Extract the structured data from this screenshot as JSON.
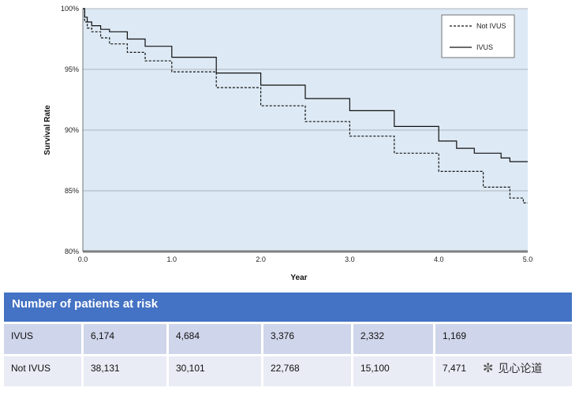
{
  "chart_data": {
    "type": "line",
    "xlabel": "Year",
    "ylabel": "Survival Rate",
    "xlim": [
      0,
      5
    ],
    "ylim": [
      80,
      100
    ],
    "x_ticks": [
      "0.0",
      "1.0",
      "2.0",
      "3.0",
      "4.0",
      "5.0"
    ],
    "y_ticks": [
      "80%",
      "85%",
      "90%",
      "95%",
      "100%"
    ],
    "grid": true,
    "legend_position": "top-right",
    "series": [
      {
        "name": "Not IVUS",
        "style": "dashed",
        "x": [
          0.0,
          0.02,
          0.05,
          0.1,
          0.2,
          0.3,
          0.5,
          0.7,
          1.0,
          1.5,
          2.0,
          2.5,
          3.0,
          3.5,
          4.0,
          4.5,
          4.8,
          4.95,
          5.0
        ],
        "y": [
          100.0,
          98.9,
          98.4,
          98.1,
          97.6,
          97.1,
          96.4,
          95.7,
          94.8,
          93.5,
          92.0,
          90.7,
          89.5,
          88.1,
          86.6,
          85.3,
          84.4,
          84.0,
          84.0
        ]
      },
      {
        "name": "IVUS",
        "style": "solid",
        "x": [
          0.0,
          0.02,
          0.05,
          0.1,
          0.2,
          0.3,
          0.5,
          0.7,
          1.0,
          1.5,
          2.0,
          2.5,
          3.0,
          3.5,
          4.0,
          4.2,
          4.4,
          4.6,
          4.7,
          4.8,
          5.0
        ],
        "y": [
          100.0,
          99.3,
          98.9,
          98.6,
          98.3,
          98.1,
          97.5,
          96.9,
          96.0,
          94.7,
          93.7,
          92.6,
          91.6,
          90.3,
          89.1,
          88.5,
          88.1,
          88.1,
          87.7,
          87.4,
          87.4
        ]
      }
    ]
  },
  "risk_table": {
    "title": "Number of patients at risk",
    "rows": [
      {
        "label": "IVUS",
        "values": [
          "6,174",
          "4,684",
          "3,376",
          "2,332",
          "1,169"
        ]
      },
      {
        "label": "Not IVUS",
        "values": [
          "38,131",
          "30,101",
          "22,768",
          "15,100",
          "7,471"
        ]
      }
    ]
  },
  "watermark": {
    "text": "见心论道",
    "icon": "wechat-icon"
  },
  "colors": {
    "plot_bg": "#dde9f4",
    "header_bg": "#4472c4",
    "row_bg": "#cfd5ea",
    "row_alt_bg": "#e9ebf5"
  }
}
